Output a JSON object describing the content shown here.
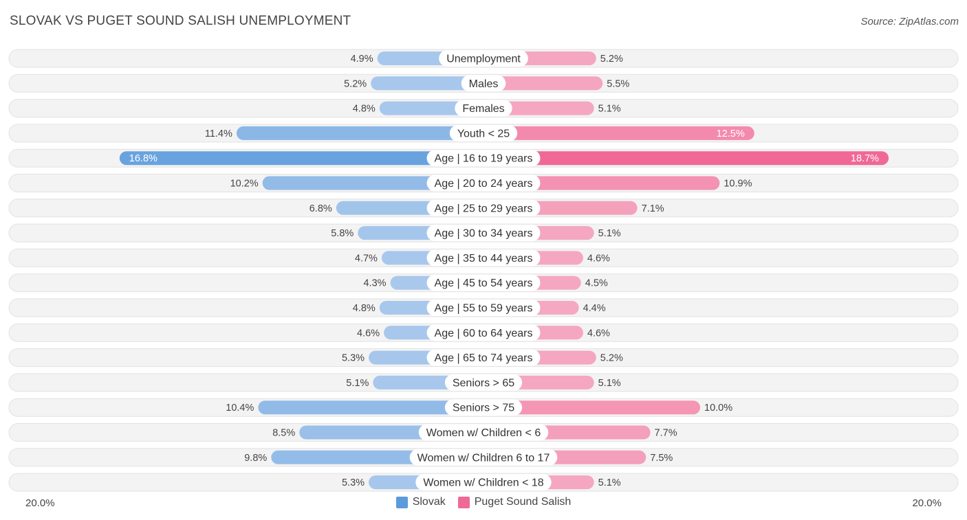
{
  "title": "SLOVAK VS PUGET SOUND SALISH UNEMPLOYMENT",
  "source": "Source: ZipAtlas.com",
  "axis": {
    "left_label": "20.0%",
    "right_label": "20.0%"
  },
  "colors": {
    "left_light": "#a9c8ec",
    "left_dark": "#5b9bdc",
    "right_light": "#f5a8c1",
    "right_dark": "#f06895",
    "track": "#efefef"
  },
  "legend": [
    {
      "label": "Slovak",
      "color": "#5b9bdc"
    },
    {
      "label": "Puget Sound Salish",
      "color": "#f06895"
    }
  ],
  "chart_data": {
    "type": "bar",
    "orientation": "horizontal-diverging",
    "title": "SLOVAK VS PUGET SOUND SALISH UNEMPLOYMENT",
    "xlim": [
      -20,
      20
    ],
    "categories": [
      "Unemployment",
      "Males",
      "Females",
      "Youth < 25",
      "Age | 16 to 19 years",
      "Age | 20 to 24 years",
      "Age | 25 to 29 years",
      "Age | 30 to 34 years",
      "Age | 35 to 44 years",
      "Age | 45 to 54 years",
      "Age | 55 to 59 years",
      "Age | 60 to 64 years",
      "Age | 65 to 74 years",
      "Seniors > 65",
      "Seniors > 75",
      "Women w/ Children < 6",
      "Women w/ Children 6 to 17",
      "Women w/ Children < 18"
    ],
    "series": [
      {
        "name": "Slovak",
        "values": [
          4.9,
          5.2,
          4.8,
          11.4,
          16.8,
          10.2,
          6.8,
          5.8,
          4.7,
          4.3,
          4.8,
          4.6,
          5.3,
          5.1,
          10.4,
          8.5,
          9.8,
          5.3
        ]
      },
      {
        "name": "Puget Sound Salish",
        "values": [
          5.2,
          5.5,
          5.1,
          12.5,
          18.7,
          10.9,
          7.1,
          5.1,
          4.6,
          4.5,
          4.4,
          4.6,
          5.2,
          5.1,
          10.0,
          7.7,
          7.5,
          5.1
        ]
      }
    ]
  }
}
